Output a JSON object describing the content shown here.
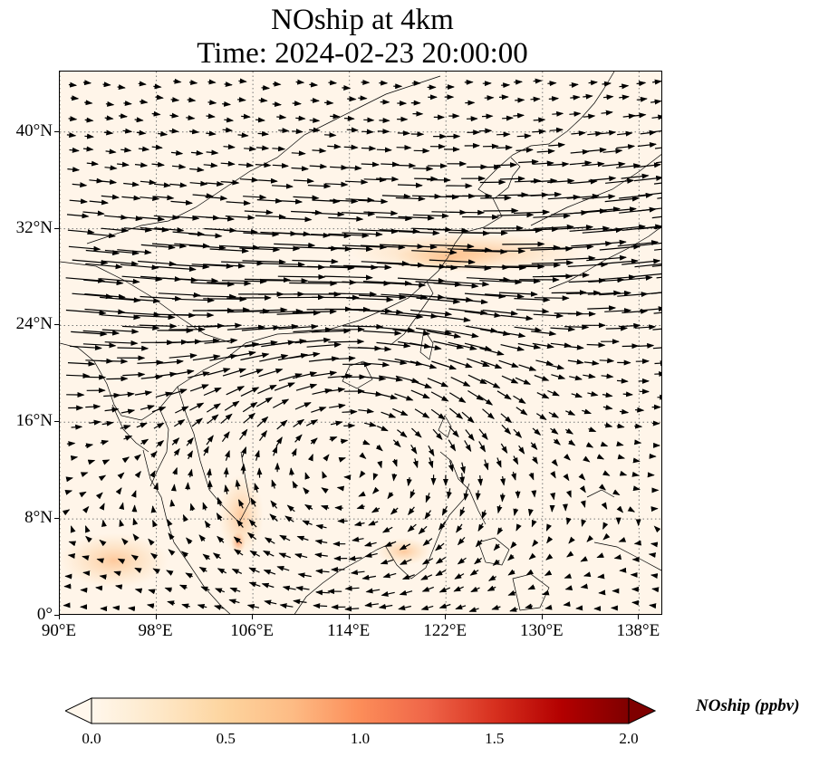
{
  "title": {
    "line1": "NOship at 4km",
    "line2": "Time: 2024-02-23 20:00:00"
  },
  "map": {
    "extent": {
      "lon_min": 90,
      "lon_max": 140,
      "lat_min": 0,
      "lat_max": 45
    },
    "lat_ticks": [
      "0°",
      "8°N",
      "16°N",
      "24°N",
      "32°N",
      "40°N"
    ],
    "lat_values": [
      0,
      8,
      16,
      24,
      32,
      40
    ],
    "lon_ticks": [
      "90°E",
      "98°E",
      "106°E",
      "114°E",
      "122°E",
      "130°E",
      "138°E"
    ],
    "lon_values": [
      90,
      98,
      106,
      114,
      122,
      130,
      138
    ],
    "gridlines": true,
    "features": [
      "coastlines",
      "country borders",
      "wind vectors"
    ]
  },
  "colorbar": {
    "label": "NOship (ppbv)",
    "ticks": [
      "0.0",
      "0.5",
      "1.0",
      "1.5",
      "2.0"
    ],
    "tick_values": [
      0.0,
      0.5,
      1.0,
      1.5,
      2.0
    ],
    "range": [
      0,
      2
    ],
    "colormap": "OrRd",
    "extend": "both",
    "colors": [
      "#fff7ec",
      "#fee8c8",
      "#fdd49e",
      "#fdbb84",
      "#fc8d59",
      "#ef6548",
      "#d7301f",
      "#b30000",
      "#7f0000"
    ]
  }
}
